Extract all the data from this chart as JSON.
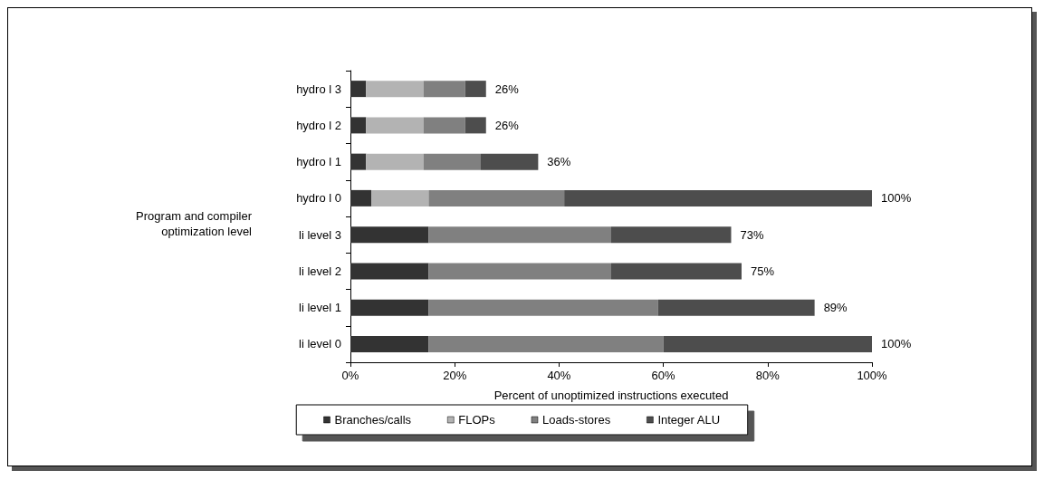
{
  "chart_data": {
    "type": "bar",
    "orientation": "horizontal",
    "stacked": true,
    "xlabel": "Percent of unoptimized instructions executed",
    "ylabel": "Program and compiler optimization level",
    "categories": [
      "hydro l 3",
      "hydro l 2",
      "hydro l 1",
      "hydro l 0",
      "li level 3",
      "li level 2",
      "li level 1",
      "li level 0"
    ],
    "series": [
      {
        "name": "Branches/calls",
        "color": "#333333",
        "values": [
          3,
          3,
          3,
          4,
          15,
          15,
          15,
          15
        ]
      },
      {
        "name": "FLOPs",
        "color": "#b3b3b3",
        "values": [
          11,
          11,
          11,
          11,
          0,
          0,
          0,
          0
        ]
      },
      {
        "name": "Loads-stores",
        "color": "#808080",
        "values": [
          8,
          8,
          11,
          26,
          35,
          35,
          44,
          45
        ]
      },
      {
        "name": "Integer ALU",
        "color": "#4d4d4d",
        "values": [
          4,
          4,
          11,
          59,
          23,
          25,
          30,
          40
        ]
      }
    ],
    "totals": [
      "26%",
      "26%",
      "36%",
      "100%",
      "73%",
      "75%",
      "89%",
      "100%"
    ],
    "xlim": [
      0,
      100
    ],
    "xticks": [
      {
        "value": 0,
        "label": "0%"
      },
      {
        "value": 20,
        "label": "20%"
      },
      {
        "value": 40,
        "label": "40%"
      },
      {
        "value": 60,
        "label": "60%"
      },
      {
        "value": 80,
        "label": "80%"
      },
      {
        "value": 100,
        "label": "100%"
      }
    ],
    "grid": false,
    "legend": "bottom"
  }
}
